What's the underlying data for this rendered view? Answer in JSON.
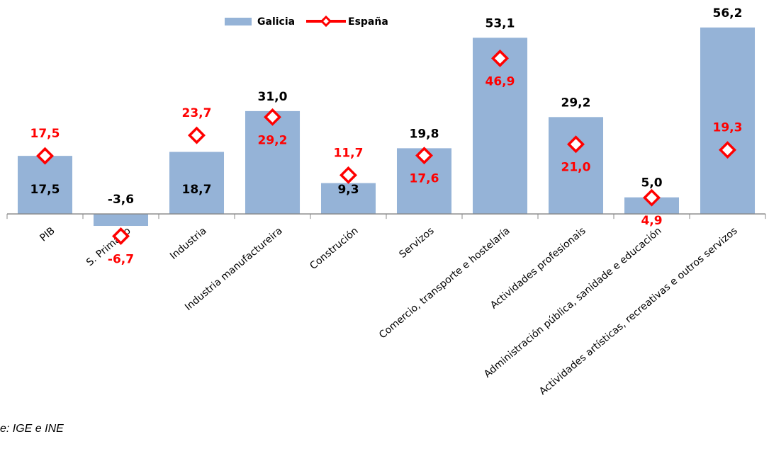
{
  "chart_data": {
    "type": "bar_marker",
    "categories": [
      "PIB",
      "S. Primario",
      "Industria",
      "Industria manufactureira",
      "Construción",
      "Servizos",
      "Comercio, transporte e hostelaría",
      "Actividades profesionais",
      "Administración pública, sanidade e educación",
      "Actividades artísticas, recreativas e outros servizos"
    ],
    "series": [
      {
        "name": "Galicia",
        "color": "#95b3d7",
        "values": [
          17.5,
          -3.6,
          18.7,
          31.0,
          9.3,
          19.8,
          53.1,
          29.2,
          5.0,
          56.2
        ],
        "value_labels": [
          "17,5",
          "-3,6",
          "18,7",
          "31,0",
          "9,3",
          "19,8",
          "53,1",
          "29,2",
          "5,0",
          "56,2"
        ]
      },
      {
        "name": "España",
        "color": "#ff0000",
        "values": [
          17.5,
          -6.7,
          23.7,
          29.2,
          11.7,
          17.6,
          46.9,
          21.0,
          4.9,
          19.3
        ],
        "value_labels": [
          "17,5",
          "-6,7",
          "23,7",
          "29,2",
          "11,7",
          "17,6",
          "46,9",
          "21,0",
          "4,9",
          "19,3"
        ]
      }
    ],
    "ylim": [
      -10,
      60
    ],
    "source": "e: IGE e INE"
  }
}
